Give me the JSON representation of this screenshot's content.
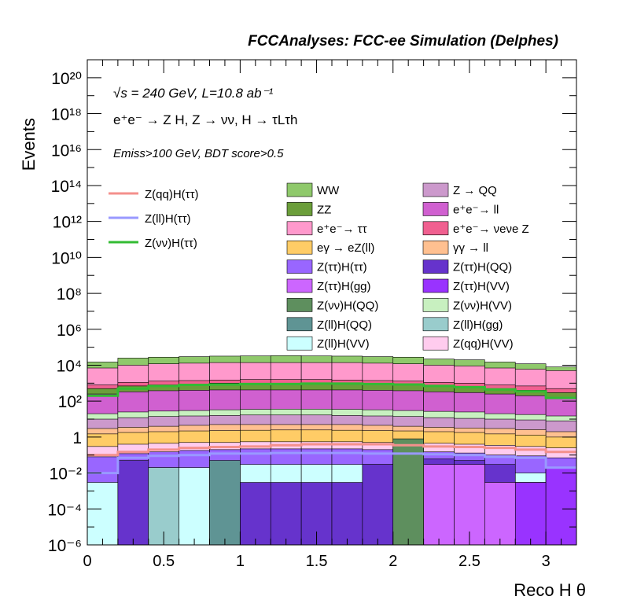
{
  "chart_data": {
    "type": "histogram",
    "title": "FCCAnalyses: FCC-ee Simulation (Delphes)",
    "xlabel": "Reco H θ",
    "ylabel": "Events",
    "xlim": [
      0,
      3.2
    ],
    "ylim": [
      1e-06,
      1e+21
    ],
    "log_y": true,
    "annotations": [
      "√s = 240 GeV, L=10.8 ab⁻¹",
      "e⁺e⁻ → Z H, Z → νν, H → τLτh",
      "Emiss>100 GeV, BDT score>0.5"
    ],
    "x_ticks": [
      "0",
      "0.5",
      "1",
      "1.5",
      "2",
      "2.5",
      "3"
    ],
    "y_ticks": [
      {
        "exp": -6,
        "label": "10⁻⁶"
      },
      {
        "exp": -4,
        "label": "10⁻⁴"
      },
      {
        "exp": -2,
        "label": "10⁻²"
      },
      {
        "exp": 0,
        "label": "1"
      },
      {
        "exp": 2,
        "label": "10²"
      },
      {
        "exp": 4,
        "label": "10⁴"
      },
      {
        "exp": 6,
        "label": "10⁶"
      },
      {
        "exp": 8,
        "label": "10⁸"
      },
      {
        "exp": 10,
        "label": "10¹⁰"
      },
      {
        "exp": 12,
        "label": "10¹²"
      },
      {
        "exp": 14,
        "label": "10¹⁴"
      },
      {
        "exp": 16,
        "label": "10¹⁶"
      },
      {
        "exp": 18,
        "label": "10¹⁸"
      },
      {
        "exp": 20,
        "label": "10²⁰"
      }
    ],
    "bin_edges": [
      0,
      0.2,
      0.4,
      0.6,
      0.8,
      1.0,
      1.2,
      1.4,
      1.6,
      1.8,
      2.0,
      2.2,
      2.4,
      2.6,
      2.8,
      3.0,
      3.2
    ],
    "stack_totals": [
      15000,
      25000,
      28000,
      30000,
      32000,
      33000,
      34000,
      33000,
      32000,
      30000,
      28000,
      22000,
      20000,
      15000,
      12000,
      8000
    ],
    "stack_layers": [
      {
        "label": "WW",
        "color": "#8fc96b",
        "level": [
          15000,
          25000,
          28000,
          30000,
          32000,
          33000,
          34000,
          33000,
          32000,
          30000,
          28000,
          22000,
          20000,
          15000,
          12000,
          8000
        ]
      },
      {
        "label": "e⁺e⁻→ ττ",
        "color": "#ff99cc",
        "level": [
          7000,
          10000,
          12000,
          13000,
          14000,
          14000,
          14000,
          14000,
          14000,
          13000,
          12000,
          10000,
          9000,
          7000,
          6000,
          5000
        ]
      },
      {
        "label": "e⁺e⁻→ νeνe Z",
        "color": "#f06090",
        "level": [
          800,
          1100,
          1300,
          1400,
          1500,
          1600,
          1600,
          1600,
          1500,
          1400,
          1300,
          1100,
          1000,
          800,
          700,
          500
        ]
      },
      {
        "label": "ZZ",
        "color": "#6b9e3a",
        "level": [
          500,
          700,
          800,
          900,
          1000,
          1000,
          1000,
          1000,
          1000,
          900,
          800,
          700,
          600,
          500,
          400,
          300
        ]
      },
      {
        "label": "e⁺e⁻→ ll",
        "color": "#d060d0",
        "level": [
          250,
          330,
          380,
          400,
          420,
          420,
          420,
          420,
          420,
          400,
          380,
          330,
          300,
          250,
          200,
          150
        ]
      },
      {
        "label": "Z(νν)H(VV)",
        "color": "#c8f0c0",
        "level": [
          20,
          25,
          28,
          30,
          33,
          35,
          36,
          36,
          35,
          33,
          30,
          27,
          25,
          20,
          18,
          15
        ]
      },
      {
        "label": "Z → QQ",
        "color": "#cc99cc",
        "level": [
          10,
          12,
          14,
          15,
          16,
          17,
          17,
          17,
          16,
          15,
          14,
          12,
          11,
          10,
          9,
          8
        ]
      },
      {
        "label": "γγ → ll",
        "color": "#ffc090",
        "level": [
          3,
          3.5,
          4,
          4.5,
          5,
          5,
          5,
          5,
          5,
          4.5,
          4,
          3.5,
          3.2,
          3,
          2.6,
          2
        ]
      },
      {
        "label": "eγ → eZ(ll)",
        "color": "#ffcc66",
        "level": [
          1.5,
          1.8,
          2.0,
          2.2,
          2.3,
          2.4,
          2.5,
          2.5,
          2.4,
          2.3,
          2.2,
          2.0,
          1.8,
          1.5,
          1.3,
          1.0
        ]
      },
      {
        "label": "Z(qq)H(VV)",
        "color": "#ffccee",
        "level": [
          0.3,
          0.4,
          0.45,
          0.5,
          0.5,
          0.55,
          0.55,
          0.55,
          0.55,
          0.5,
          0.5,
          0.45,
          0.4,
          0.35,
          0.3,
          0.25
        ]
      },
      {
        "label": "Z(ττ)H(ττ)",
        "color": "#9966ff",
        "level": [
          0.08,
          0.12,
          0.15,
          0.18,
          0.2,
          0.22,
          0.22,
          0.22,
          0.22,
          0.2,
          0.18,
          0.15,
          0.13,
          0.1,
          0.09,
          0.07
        ]
      },
      {
        "label": "Z(ll)H(VV)",
        "color": "#ccffff",
        "level": [
          0.003,
          0.01,
          0.015,
          0.02,
          0.02,
          0.03,
          0.03,
          0.03,
          0.03,
          0.03,
          0.02,
          0.02,
          0.015,
          0.01,
          0.01,
          0.003
        ]
      }
    ],
    "extra_layers": [
      {
        "label": "Z(ττ)H(QQ)",
        "color": "#6633cc",
        "values": [
          0,
          0.05,
          0,
          0,
          0,
          0.003,
          0.003,
          0.003,
          0.003,
          0.03,
          0.05,
          0.06,
          0.05,
          0.03,
          0.003,
          0.02
        ]
      },
      {
        "label": "Z(ττ)H(VV)",
        "color": "#9933ff",
        "values": [
          0,
          0,
          0.02,
          0,
          0,
          0,
          0,
          0,
          0,
          0,
          0,
          0,
          0,
          0,
          0.003,
          0.02
        ]
      },
      {
        "label": "Z(ττ)H(gg)",
        "color": "#cc66ff",
        "values": [
          0,
          0,
          0,
          0,
          0,
          0,
          0,
          0,
          0,
          0,
          0,
          0.03,
          0.03,
          0.003,
          0,
          0
        ]
      },
      {
        "label": "Z(ll)H(QQ)",
        "color": "#5f9494",
        "values": [
          0,
          0,
          0,
          0,
          0.05,
          0,
          0,
          0,
          0,
          0,
          1e-05,
          0,
          0,
          0,
          0,
          0
        ]
      },
      {
        "label": "Z(ll)H(gg)",
        "color": "#99cccc",
        "values": [
          0,
          0,
          0.02,
          0,
          0,
          0,
          0,
          0,
          0,
          0,
          0,
          0,
          0,
          0,
          0,
          0
        ]
      },
      {
        "label": "Z(νν)H(QQ)",
        "color": "#5e8f5e",
        "values": [
          0,
          0,
          0,
          0,
          0,
          0,
          0,
          0,
          0,
          0,
          0.8,
          0,
          0,
          0,
          0,
          0
        ]
      }
    ],
    "lines": [
      {
        "label": "Z(qq)H(ττ)",
        "color": "#f4908c",
        "values": [
          0.1,
          0.15,
          0.2,
          0.25,
          0.28,
          0.3,
          0.35,
          0.4,
          0.4,
          0.4,
          0.35,
          0.3,
          0.28,
          0.25,
          0.2,
          0.15
        ]
      },
      {
        "label": "Z(ll)H(ττ)",
        "color": "#9999ff",
        "values": [
          0.01,
          0.07,
          0.09,
          0.1,
          0.12,
          0.12,
          0.13,
          0.13,
          0.13,
          0.12,
          0.12,
          0.11,
          0.1,
          0.08,
          0.07,
          0.02
        ]
      },
      {
        "label": "Z(νν)H(ττ)",
        "color": "#33bb33",
        "values": [
          200,
          500,
          700,
          800,
          850,
          900,
          900,
          950,
          950,
          900,
          850,
          700,
          600,
          450,
          350,
          150
        ]
      }
    ],
    "legend_lines": [
      {
        "label": "Z(qq)H(ττ)",
        "color": "#f4908c"
      },
      {
        "label": "Z(ll)H(ττ)",
        "color": "#9999ff"
      },
      {
        "label": "Z(νν)H(ττ)",
        "color": "#33bb33"
      }
    ],
    "legend_boxes": [
      {
        "label": "WW",
        "color": "#8fc96b"
      },
      {
        "label": "Z → QQ",
        "color": "#cc99cc"
      },
      {
        "label": "ZZ",
        "color": "#6b9e3a"
      },
      {
        "label": "e⁺e⁻→ ll",
        "color": "#d060d0"
      },
      {
        "label": "e⁺e⁻→ ττ",
        "color": "#ff99cc"
      },
      {
        "label": "e⁺e⁻→ νeνe Z",
        "color": "#f06090"
      },
      {
        "label": "eγ → eZ(ll)",
        "color": "#ffcc66"
      },
      {
        "label": "γγ → ll",
        "color": "#ffc090"
      },
      {
        "label": "Z(ττ)H(ττ)",
        "color": "#9966ff"
      },
      {
        "label": "Z(ττ)H(QQ)",
        "color": "#6633cc"
      },
      {
        "label": "Z(ττ)H(gg)",
        "color": "#cc66ff"
      },
      {
        "label": "Z(ττ)H(VV)",
        "color": "#9933ff"
      },
      {
        "label": "Z(νν)H(QQ)",
        "color": "#5e8f5e"
      },
      {
        "label": "Z(νν)H(VV)",
        "color": "#c8f0c0"
      },
      {
        "label": "Z(ll)H(QQ)",
        "color": "#5f9494"
      },
      {
        "label": "Z(ll)H(gg)",
        "color": "#99cccc"
      },
      {
        "label": "Z(ll)H(VV)",
        "color": "#ccffff"
      },
      {
        "label": "Z(qq)H(VV)",
        "color": "#ffccee"
      }
    ]
  }
}
